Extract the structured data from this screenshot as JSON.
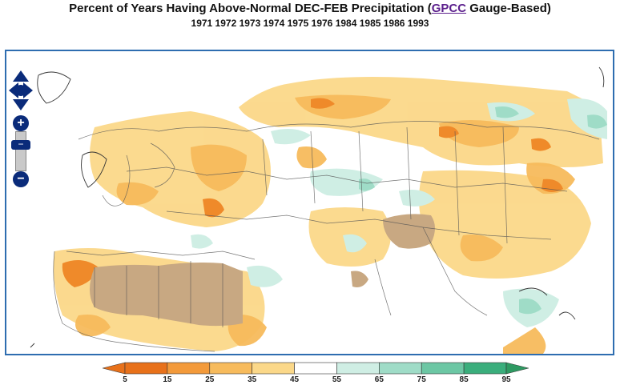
{
  "header": {
    "title_prefix": "Percent of Years Having Above-Normal DEC-FEB Precipitation (",
    "title_link": "GPCC",
    "title_suffix": " Gauge-Based)",
    "years": "1971 1972 1973 1974 1975 1976 1984 1985 1986 1993"
  },
  "map": {
    "controls": {
      "pan_icon": "pan-arrows-icon",
      "zoom_in_label": "+",
      "zoom_out_label": "−",
      "zoom_handle_label": "−"
    }
  },
  "legend": {
    "ticks": [
      "5",
      "15",
      "25",
      "35",
      "45",
      "55",
      "65",
      "75",
      "85",
      "95"
    ],
    "colors": [
      "#e8711a",
      "#f39a3a",
      "#f7bb5c",
      "#fbd889",
      "#ffffff",
      "#cfeee4",
      "#9fdcc7",
      "#6cc7a4",
      "#3aae7c"
    ],
    "low_arrow_color": "#e8711a",
    "high_arrow_color": "#2e9a62"
  },
  "colors": {
    "frame_border": "#2e6db0",
    "masked_region": "#c8a882",
    "nav_blue": "#0a2b7a"
  }
}
